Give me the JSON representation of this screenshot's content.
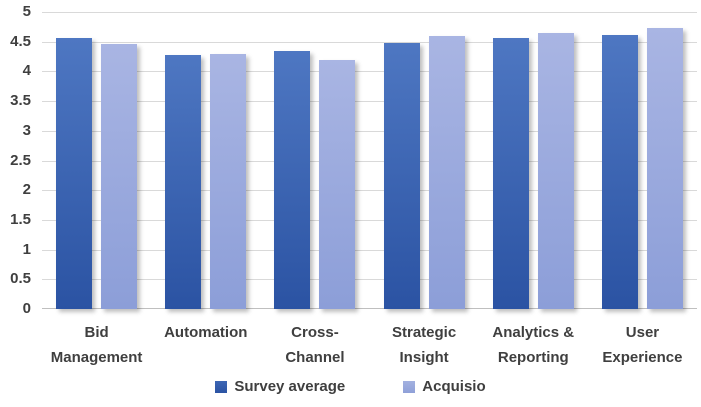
{
  "chart_data": {
    "type": "bar",
    "title": "",
    "xlabel": "",
    "ylabel": "",
    "categories": [
      "Bid Management",
      "Automation",
      "Cross-Channel",
      "Strategic Insight",
      "Analytics & Reporting",
      "User Experience"
    ],
    "series": [
      {
        "name": "Survey average",
        "values": [
          4.57,
          4.27,
          4.35,
          4.47,
          4.57,
          4.61
        ],
        "color_top": "#4e77c2",
        "color_bottom": "#2b53a3"
      },
      {
        "name": "Acquisio",
        "values": [
          4.46,
          4.29,
          4.2,
          4.59,
          4.65,
          4.73
        ],
        "color_top": "#a9b5e3",
        "color_bottom": "#8c9ed8"
      }
    ],
    "ylim": [
      0,
      5
    ],
    "ytick_step": 0.5,
    "grid": "horizontal",
    "legend_position": "bottom"
  },
  "colors": {
    "background": "#ffffff",
    "gridline": "#d9d9d9",
    "axis_line": "#bfbfbf",
    "text": "#3f3f3f"
  }
}
